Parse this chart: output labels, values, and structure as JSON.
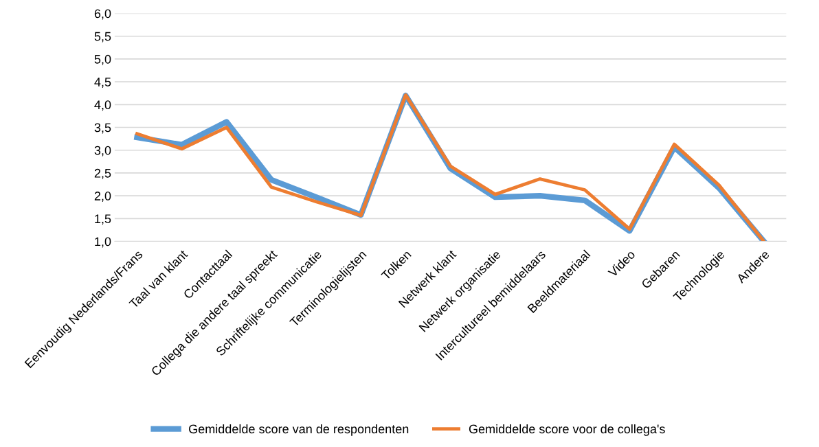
{
  "chart_data": {
    "type": "line",
    "categories": [
      "Eenvoudig Nederlands/Frans",
      "Taal van klant",
      "Contacttaal",
      "Collega die andere taal spreekt",
      "Schriftelijke communicatie",
      "Terminologielijsten",
      "Tolken",
      "Netwerk klant",
      "Netwerk organisatie",
      "Intercultureel bemiddelaars",
      "Beeldmateriaal",
      "Video",
      "Gebaren",
      "Technologie",
      "Andere"
    ],
    "series": [
      {
        "name": "Gemiddelde score van de respondenten",
        "color": "#5b9bd5",
        "values": [
          3.28,
          3.12,
          3.62,
          2.35,
          1.97,
          1.58,
          4.2,
          2.6,
          1.97,
          2.0,
          1.9,
          1.23,
          3.07,
          2.17,
          1.0
        ]
      },
      {
        "name": "Gemiddelde score voor de collega's",
        "color": "#ed7d31",
        "values": [
          3.36,
          3.03,
          3.5,
          2.19,
          1.87,
          1.57,
          4.21,
          2.65,
          2.03,
          2.37,
          2.13,
          1.27,
          3.13,
          2.23,
          1.0
        ]
      }
    ],
    "ylim": [
      1.0,
      6.0
    ],
    "yticks": [
      {
        "value": 1.0,
        "label": "1,0"
      },
      {
        "value": 1.5,
        "label": "1,5"
      },
      {
        "value": 2.0,
        "label": "2,0"
      },
      {
        "value": 2.5,
        "label": "2,5"
      },
      {
        "value": 3.0,
        "label": "3,0"
      },
      {
        "value": 3.5,
        "label": "3,5"
      },
      {
        "value": 4.0,
        "label": "4,0"
      },
      {
        "value": 4.5,
        "label": "4,5"
      },
      {
        "value": 5.0,
        "label": "5,0"
      },
      {
        "value": 5.5,
        "label": "5,5"
      },
      {
        "value": 6.0,
        "label": "6,0"
      }
    ],
    "grid": "y",
    "legend": "bottom",
    "marker": "none",
    "line_style": "solid"
  }
}
